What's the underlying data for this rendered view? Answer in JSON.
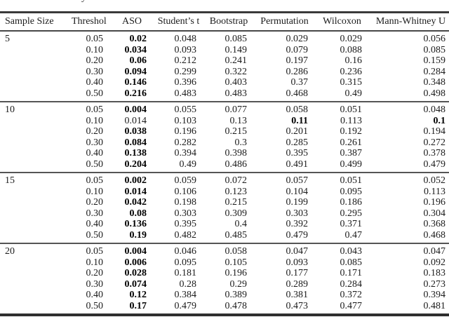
{
  "caption_fragment": "y",
  "colors": {
    "text": "#1b1b1b",
    "rule_top": "#3a3a3a",
    "rule_bottom": "#2e2e2e",
    "rule_group": "#555555"
  },
  "table": {
    "columns": [
      "Sample Size",
      "Threshold",
      "ASO",
      "Student’s t",
      "Bootstrap",
      "Permutation",
      "Wilcoxon",
      "Mann-Whitney U"
    ],
    "groups": [
      {
        "sample_size": "5",
        "rows": [
          {
            "threshold": "0.05",
            "values": [
              "0.02",
              "0.048",
              "0.085",
              "0.029",
              "0.029",
              "0.056"
            ],
            "bold": [
              0
            ]
          },
          {
            "threshold": "0.10",
            "values": [
              "0.034",
              "0.093",
              "0.149",
              "0.079",
              "0.088",
              "0.085"
            ],
            "bold": [
              0
            ]
          },
          {
            "threshold": "0.20",
            "values": [
              "0.06",
              "0.212",
              "0.241",
              "0.197",
              "0.16",
              "0.159"
            ],
            "bold": [
              0
            ]
          },
          {
            "threshold": "0.30",
            "values": [
              "0.094",
              "0.299",
              "0.322",
              "0.286",
              "0.236",
              "0.284"
            ],
            "bold": [
              0
            ]
          },
          {
            "threshold": "0.40",
            "values": [
              "0.146",
              "0.396",
              "0.403",
              "0.37",
              "0.315",
              "0.348"
            ],
            "bold": [
              0
            ]
          },
          {
            "threshold": "0.50",
            "values": [
              "0.216",
              "0.483",
              "0.483",
              "0.468",
              "0.49",
              "0.498"
            ],
            "bold": [
              0
            ]
          }
        ]
      },
      {
        "sample_size": "10",
        "rows": [
          {
            "threshold": "0.05",
            "values": [
              "0.004",
              "0.055",
              "0.077",
              "0.058",
              "0.051",
              "0.048"
            ],
            "bold": [
              0
            ]
          },
          {
            "threshold": "0.10",
            "values": [
              "0.014",
              "0.103",
              "0.13",
              "0.11",
              "0.113",
              "0.1"
            ],
            "bold": [
              3,
              5
            ]
          },
          {
            "threshold": "0.20",
            "values": [
              "0.038",
              "0.196",
              "0.215",
              "0.201",
              "0.192",
              "0.194"
            ],
            "bold": [
              0
            ]
          },
          {
            "threshold": "0.30",
            "values": [
              "0.084",
              "0.282",
              "0.3",
              "0.285",
              "0.261",
              "0.272"
            ],
            "bold": [
              0
            ]
          },
          {
            "threshold": "0.40",
            "values": [
              "0.138",
              "0.394",
              "0.398",
              "0.395",
              "0.387",
              "0.378"
            ],
            "bold": [
              0
            ]
          },
          {
            "threshold": "0.50",
            "values": [
              "0.204",
              "0.49",
              "0.486",
              "0.491",
              "0.499",
              "0.479"
            ],
            "bold": [
              0
            ]
          }
        ]
      },
      {
        "sample_size": "15",
        "rows": [
          {
            "threshold": "0.05",
            "values": [
              "0.002",
              "0.059",
              "0.072",
              "0.057",
              "0.051",
              "0.052"
            ],
            "bold": [
              0
            ]
          },
          {
            "threshold": "0.10",
            "values": [
              "0.014",
              "0.106",
              "0.123",
              "0.104",
              "0.095",
              "0.113"
            ],
            "bold": [
              0
            ]
          },
          {
            "threshold": "0.20",
            "values": [
              "0.042",
              "0.198",
              "0.215",
              "0.199",
              "0.186",
              "0.196"
            ],
            "bold": [
              0
            ]
          },
          {
            "threshold": "0.30",
            "values": [
              "0.08",
              "0.303",
              "0.309",
              "0.303",
              "0.295",
              "0.304"
            ],
            "bold": [
              0
            ]
          },
          {
            "threshold": "0.40",
            "values": [
              "0.136",
              "0.395",
              "0.4",
              "0.392",
              "0.371",
              "0.368"
            ],
            "bold": [
              0
            ]
          },
          {
            "threshold": "0.50",
            "values": [
              "0.19",
              "0.482",
              "0.485",
              "0.479",
              "0.47",
              "0.468"
            ],
            "bold": [
              0
            ]
          }
        ]
      },
      {
        "sample_size": "20",
        "rows": [
          {
            "threshold": "0.05",
            "values": [
              "0.004",
              "0.046",
              "0.058",
              "0.047",
              "0.043",
              "0.047"
            ],
            "bold": [
              0
            ]
          },
          {
            "threshold": "0.10",
            "values": [
              "0.006",
              "0.095",
              "0.105",
              "0.093",
              "0.085",
              "0.092"
            ],
            "bold": [
              0
            ]
          },
          {
            "threshold": "0.20",
            "values": [
              "0.028",
              "0.181",
              "0.196",
              "0.177",
              "0.171",
              "0.183"
            ],
            "bold": [
              0
            ]
          },
          {
            "threshold": "0.30",
            "values": [
              "0.074",
              "0.28",
              "0.29",
              "0.289",
              "0.284",
              "0.273"
            ],
            "bold": [
              0
            ]
          },
          {
            "threshold": "0.40",
            "values": [
              "0.12",
              "0.384",
              "0.389",
              "0.381",
              "0.372",
              "0.394"
            ],
            "bold": [
              0
            ]
          },
          {
            "threshold": "0.50",
            "values": [
              "0.17",
              "0.479",
              "0.478",
              "0.473",
              "0.477",
              "0.481"
            ],
            "bold": [
              0
            ]
          }
        ]
      }
    ]
  }
}
